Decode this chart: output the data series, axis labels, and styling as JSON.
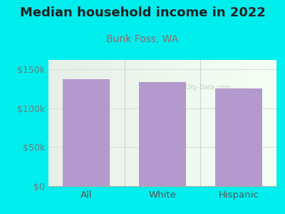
{
  "title": "Median household income in 2022",
  "subtitle": "Bunk Foss, WA",
  "categories": [
    "All",
    "White",
    "Hispanic"
  ],
  "values": [
    137000,
    134000,
    125000
  ],
  "bar_color": "#b399cc",
  "background_color": "#00EEEE",
  "title_color": "#222222",
  "subtitle_color": "#996666",
  "title_fontsize": 13,
  "subtitle_fontsize": 10,
  "tick_color": "#777777",
  "label_color": "#555555",
  "yticks": [
    0,
    50000,
    100000,
    150000
  ],
  "ytick_labels": [
    "$0",
    "$50k",
    "$100k",
    "$150k"
  ],
  "ylim": [
    0,
    162000
  ],
  "watermark": "City-Data.com",
  "grid_color": "#dddddd",
  "plot_bg_colors": [
    "#e8f5e0",
    "#f8fff8",
    "#f0f8e8"
  ]
}
